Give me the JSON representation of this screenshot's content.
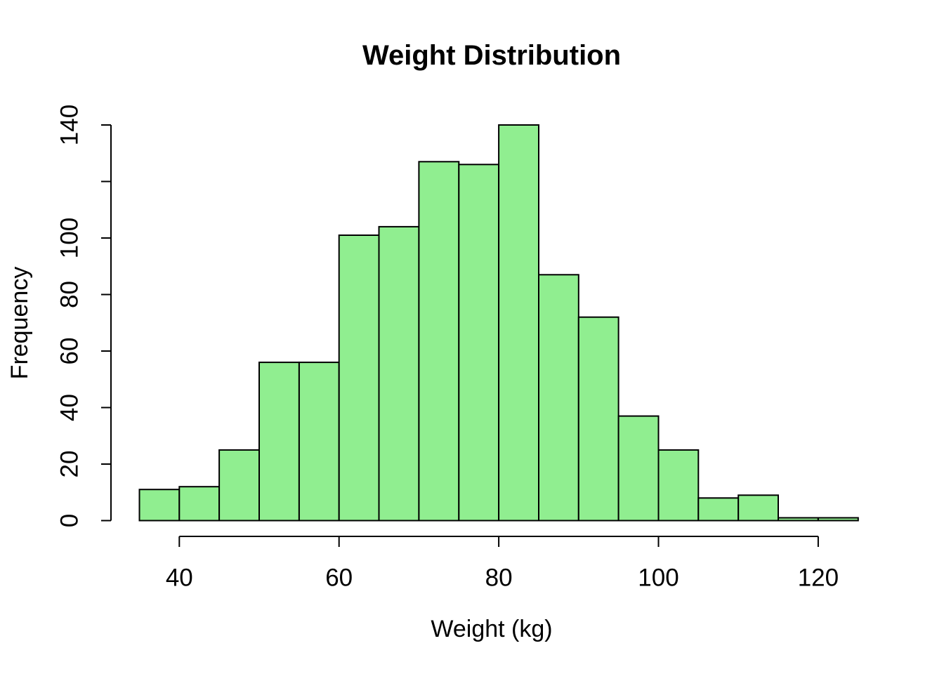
{
  "chart_data": {
    "type": "bar",
    "subtype": "histogram",
    "title": "Weight Distribution",
    "xlabel": "Weight (kg)",
    "ylabel": "Frequency",
    "bin_start": 35,
    "bin_width": 5,
    "bin_edges": [
      35,
      40,
      45,
      50,
      55,
      60,
      65,
      70,
      75,
      80,
      85,
      90,
      95,
      100,
      105,
      110,
      115,
      120,
      125
    ],
    "counts": [
      11,
      12,
      25,
      56,
      56,
      101,
      104,
      127,
      126,
      140,
      87,
      72,
      37,
      25,
      8,
      9,
      1,
      1
    ],
    "xlim": [
      35,
      125
    ],
    "ylim": [
      0,
      140
    ],
    "x_tick_values": [
      40,
      60,
      80,
      100,
      120
    ],
    "x_tick_labels": [
      "40",
      "60",
      "80",
      "100",
      "120"
    ],
    "y_tick_values": [
      0,
      20,
      40,
      60,
      80,
      100,
      120,
      140
    ],
    "y_tick_labels": [
      "0",
      "20",
      "40",
      "60",
      "80",
      "100",
      "",
      "140"
    ],
    "grid": "off",
    "legend": "none",
    "colors": {
      "bar_fill": "#90EE90",
      "bar_stroke": "#000000",
      "axis": "#000000",
      "text": "#000000",
      "background": "#FFFFFF"
    }
  }
}
